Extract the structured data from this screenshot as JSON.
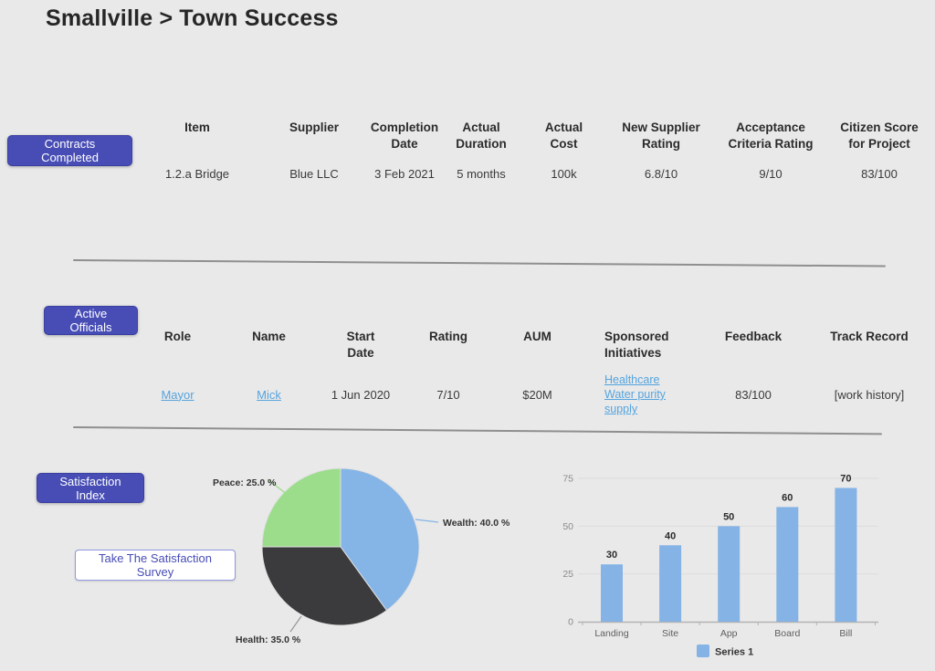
{
  "title": "Smallville > Town Success",
  "colors": {
    "accent": "#474db5",
    "link": "#55a4de",
    "pie_wealth": "#85b4e6",
    "pie_health": "#3b3b3d",
    "pie_peace": "#9cdd8c",
    "bar_fill": "#85b3e6"
  },
  "contracts": {
    "button_label": "Contracts Completed",
    "columns": [
      "Item",
      "Supplier",
      "Completion Date",
      "Actual Duration",
      "Actual Cost",
      "New Supplier Rating",
      "Acceptance Criteria Rating",
      "Citizen Score for Project"
    ],
    "rows": [
      [
        "1.2.a Bridge",
        "Blue LLC",
        "3 Feb 2021",
        "5 months",
        "100k",
        "6.8/10",
        "9/10",
        "83/100"
      ]
    ]
  },
  "officials": {
    "button_label": "Active Officials",
    "columns": [
      "Role",
      "Name",
      "Start Date",
      "Rating",
      "AUM",
      "Sponsored Initiatives",
      "Feedback",
      "Track Record"
    ],
    "rows": [
      {
        "role": "Mayor",
        "name": "Mick",
        "start_date": "1 Jun 2020",
        "rating": "7/10",
        "aum": "$20M",
        "initiatives": [
          "Healthcare",
          "Water purity supply"
        ],
        "feedback": "83/100",
        "track_record": "[work history]"
      }
    ]
  },
  "satisfaction": {
    "button_label": "Satisfaction Index",
    "survey_button_label": "Take The Satisfaction Survey"
  },
  "chart_data": [
    {
      "type": "pie",
      "title": "Satisfaction Index",
      "slices": [
        {
          "label": "Wealth",
          "value": 40.0,
          "color": "#85b4e6"
        },
        {
          "label": "Health",
          "value": 35.0,
          "color": "#3b3b3d"
        },
        {
          "label": "Peace",
          "value": 25.0,
          "color": "#9cdd8c"
        }
      ],
      "label_format": "{label}: {value} %",
      "start_angle": "top",
      "direction": "clockwise"
    },
    {
      "type": "bar",
      "categories": [
        "Landing",
        "Site",
        "App",
        "Board",
        "Bill"
      ],
      "values": [
        30,
        40,
        50,
        60,
        70
      ],
      "series_name": "Series 1",
      "ylim": [
        0,
        75
      ],
      "yticks": [
        0,
        25,
        50,
        75
      ],
      "bar_color": "#85b3e6",
      "grid": true,
      "legend_position": "bottom"
    }
  ]
}
